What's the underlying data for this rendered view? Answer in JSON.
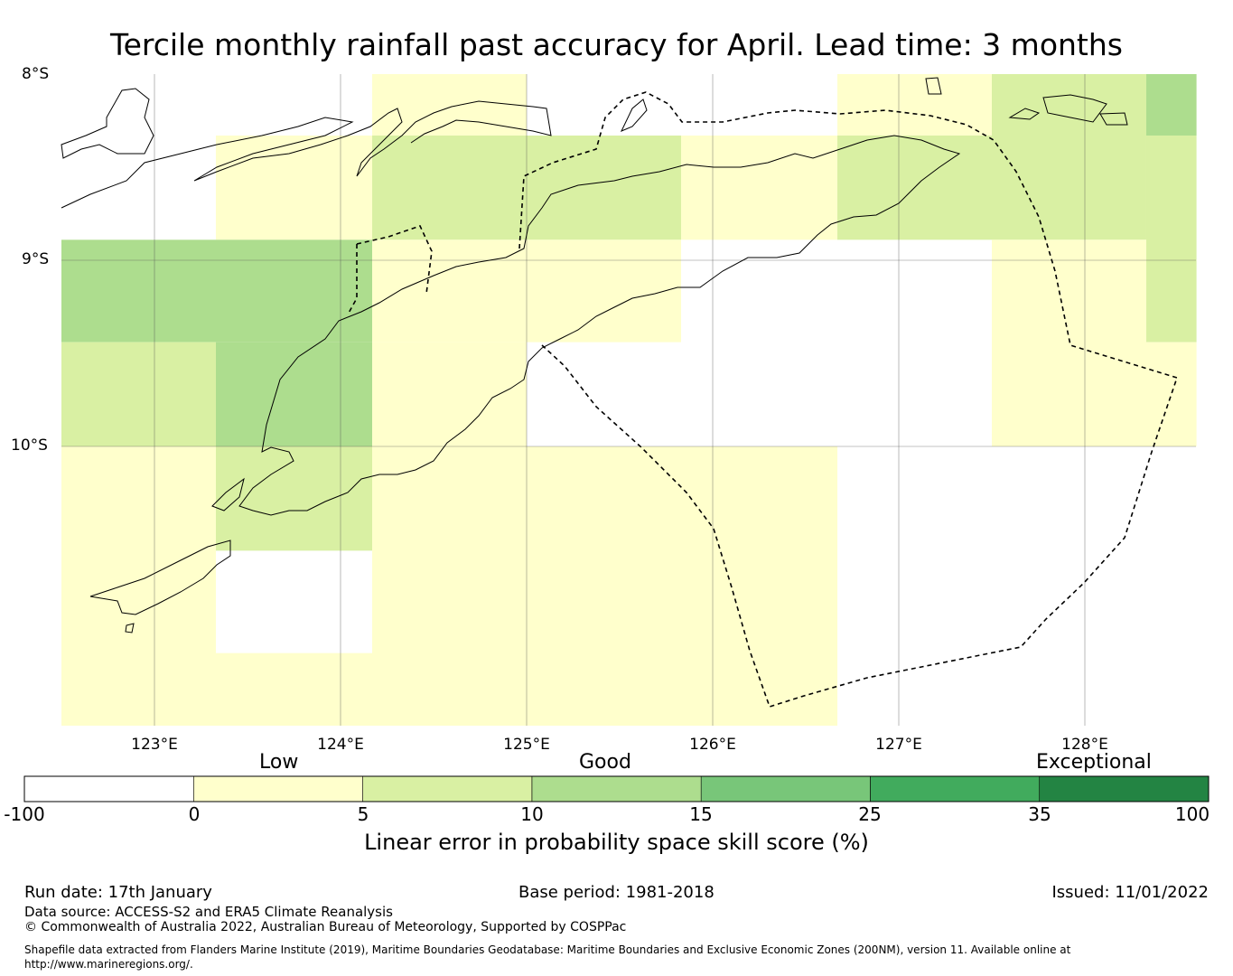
{
  "title": "Tercile monthly rainfall past accuracy for April. Lead time: 3 months",
  "map": {
    "lat_labels": [
      "8°S",
      "9°S",
      "10°S"
    ],
    "lon_labels": [
      "123°E",
      "124°E",
      "125°E",
      "126°E",
      "127°E",
      "128°E"
    ],
    "grid_cells": [
      {
        "lon": [
          122.5,
          123.33
        ],
        "lat": [
          -8.33,
          -8.89
        ],
        "class": "none"
      },
      {
        "lon": [
          123.33,
          124.17
        ],
        "lat": [
          -8.33,
          -8.89
        ],
        "class": "0-5"
      },
      {
        "lon": [
          124.17,
          125.0
        ],
        "lat": [
          -8.0,
          -8.33
        ],
        "class": "0-5"
      },
      {
        "lon": [
          125.83,
          126.67
        ],
        "lat": [
          -8.33,
          -8.89
        ],
        "class": "0-5"
      },
      {
        "lon": [
          126.67,
          127.5
        ],
        "lat": [
          -8.0,
          -8.33
        ],
        "class": "0-5"
      },
      {
        "lon": [
          124.17,
          125.83
        ],
        "lat": [
          -8.33,
          -8.89
        ],
        "class": "5-10"
      },
      {
        "lon": [
          126.67,
          127.5
        ],
        "lat": [
          -8.33,
          -8.89
        ],
        "class": "5-10"
      },
      {
        "lon": [
          127.5,
          128.33
        ],
        "lat": [
          -8.0,
          -8.89
        ],
        "class": "5-10"
      },
      {
        "lon": [
          128.33,
          128.6
        ],
        "lat": [
          -8.33,
          -9.44
        ],
        "class": "5-10"
      },
      {
        "lon": [
          128.33,
          128.6
        ],
        "lat": [
          -8.0,
          -8.33
        ],
        "class": "10-15"
      },
      {
        "lon": [
          122.5,
          124.17
        ],
        "lat": [
          -8.89,
          -9.44
        ],
        "class": "10-15"
      },
      {
        "lon": [
          123.33,
          124.17
        ],
        "lat": [
          -9.44,
          -10.0
        ],
        "class": "10-15"
      },
      {
        "lon": [
          122.5,
          123.33
        ],
        "lat": [
          -9.44,
          -10.0
        ],
        "class": "5-10"
      },
      {
        "lon": [
          124.17,
          125.83
        ],
        "lat": [
          -8.89,
          -9.44
        ],
        "class": "0-5"
      },
      {
        "lon": [
          124.17,
          125.0
        ],
        "lat": [
          -9.44,
          -10.0
        ],
        "class": "0-5"
      },
      {
        "lon": [
          127.5,
          128.33
        ],
        "lat": [
          -8.89,
          -10.0
        ],
        "class": "0-5"
      },
      {
        "lon": [
          128.33,
          128.6
        ],
        "lat": [
          -9.44,
          -10.0
        ],
        "class": "0-5"
      },
      {
        "lon": [
          122.5,
          123.33
        ],
        "lat": [
          -10.0,
          -11.5
        ],
        "class": "0-5"
      },
      {
        "lon": [
          123.33,
          124.17
        ],
        "lat": [
          -10.0,
          -10.56
        ],
        "class": "5-10"
      },
      {
        "lon": [
          123.33,
          124.17
        ],
        "lat": [
          -11.11,
          -11.5
        ],
        "class": "0-5"
      },
      {
        "lon": [
          124.17,
          126.67
        ],
        "lat": [
          -10.0,
          -11.5
        ],
        "class": "0-5"
      }
    ]
  },
  "colorbar": {
    "categories": [
      "Low",
      "Good",
      "Exceptional"
    ],
    "ticks": [
      "-100",
      "0",
      "5",
      "10",
      "15",
      "25",
      "35",
      "100"
    ],
    "colors": [
      "#ffffff",
      "#ffffcc",
      "#d9f0a3",
      "#addd8e",
      "#78c679",
      "#41ab5d",
      "#238443"
    ],
    "label": "Linear error in probability space skill score (%)"
  },
  "footer": {
    "run_date": "Run date: 17th January",
    "base_period": "Base period: 1981-2018",
    "issued": "Issued: 11/01/2022",
    "data_source": "Data source: ACCESS-S2 and ERA5 Climate Reanalysis",
    "copyright": "© Commonwealth of Australia 2022, Australian Bureau of Meteorology, Supported by COSPPac",
    "shapefile": "Shapefile data extracted from Flanders Marine Institute (2019), Maritime Boundaries Geodatabase: Maritime Boundaries and Exclusive Economic Zones (200NM), version 11. Available online at http://www.marineregions.org/."
  }
}
